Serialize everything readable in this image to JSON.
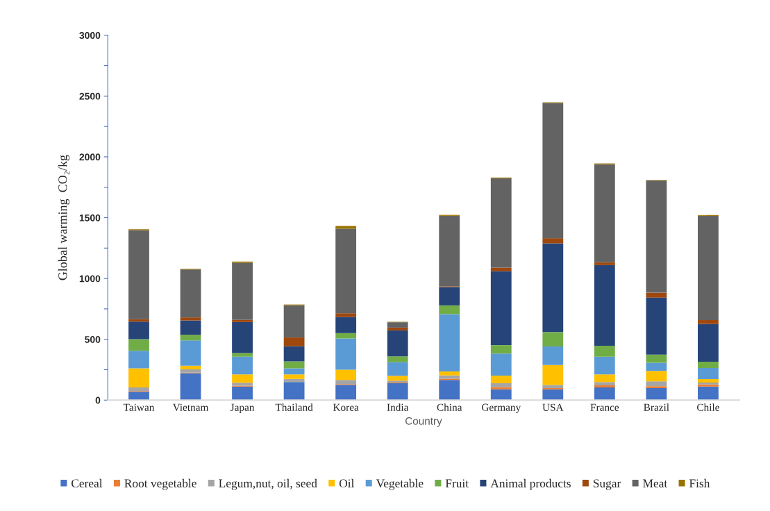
{
  "chart_data": {
    "type": "bar",
    "stacked": true,
    "xlabel": "Country",
    "ylabel": "Global warming  CO₂/kg",
    "categories": [
      "Taiwan",
      "Vietnam",
      "Japan",
      "Thailand",
      "Korea",
      "India",
      "China",
      "Germany",
      "USA",
      "France",
      "Brazil",
      "Chile"
    ],
    "series": [
      {
        "name": "Cereal",
        "color": "#4472c4",
        "values": [
          69,
          221,
          112,
          149,
          126,
          139,
          166,
          88,
          88,
          105,
          99,
          112
        ]
      },
      {
        "name": "Root vegetable",
        "color": "#ed7d31",
        "values": [
          6,
          5,
          6,
          null,
          6,
          6,
          10,
          19,
          10,
          17,
          15,
          17
        ]
      },
      {
        "name": "Legum,nut, oil, seed",
        "color": "#a5a5a5",
        "values": [
          30,
          27,
          25,
          25,
          34,
          15,
          27,
          32,
          27,
          27,
          40,
          15
        ]
      },
      {
        "name": "Oil",
        "color": "#ffc000",
        "values": [
          156,
          30,
          69,
          38,
          84,
          40,
          32,
          63,
          164,
          63,
          86,
          29
        ]
      },
      {
        "name": "Vegetable",
        "color": "#5b9bd5",
        "values": [
          145,
          208,
          145,
          50,
          257,
          112,
          472,
          181,
          152,
          145,
          67,
          91
        ]
      },
      {
        "name": "Fruit",
        "color": "#70ad47",
        "values": [
          95,
          46,
          30,
          57,
          44,
          48,
          72,
          69,
          118,
          90,
          67,
          51
        ]
      },
      {
        "name": "Animal products",
        "color": "#264478",
        "values": [
          145,
          118,
          255,
          124,
          133,
          213,
          151,
          608,
          730,
          663,
          469,
          311
        ]
      },
      {
        "name": "Sugar",
        "color": "#9e480e",
        "values": [
          19,
          25,
          17,
          72,
          30,
          23,
          6,
          29,
          42,
          23,
          40,
          32
        ]
      },
      {
        "name": "Meat",
        "color": "#636363",
        "values": [
          733,
          394,
          470,
          265,
          695,
          44,
          579,
          735,
          1112,
          807,
          922,
          857
        ]
      },
      {
        "name": "Fish",
        "color": "#997300",
        "values": [
          6,
          6,
          10,
          6,
          23,
          4,
          8,
          6,
          5,
          6,
          4,
          6
        ]
      }
    ],
    "ylim": [
      0,
      3000
    ],
    "yticks": [
      0,
      {
        "value": 250,
        "label": null
      },
      500,
      {
        "value": 750,
        "label": null
      },
      1000,
      {
        "value": 1250,
        "label": null
      },
      1500,
      {
        "value": 1750,
        "label": null
      },
      2000,
      {
        "value": 2250,
        "label": null
      },
      2500,
      {
        "value": 2750,
        "label": null
      },
      3000
    ],
    "grid": false,
    "legend": "bottom"
  }
}
